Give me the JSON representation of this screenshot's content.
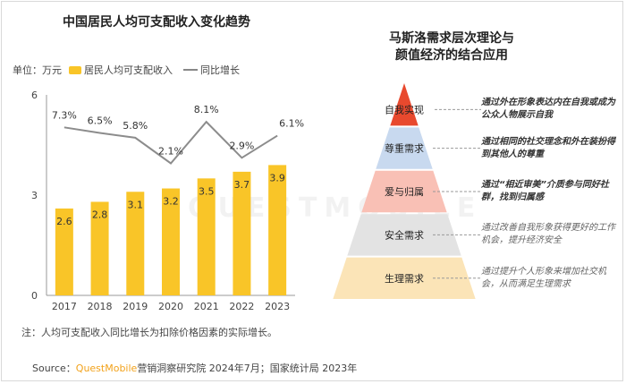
{
  "left_chart": {
    "title": "中国居民人均可支配收入变化趋势",
    "unit_label": "单位：万元",
    "note": "注：人均可支配收入同比增长为扣除价格因素的实际增长。"
  },
  "chart_data": {
    "type": "bar",
    "title": "中国居民人均可支配收入变化趋势",
    "categories": [
      "2017",
      "2018",
      "2019",
      "2020",
      "2021",
      "2022",
      "2023"
    ],
    "series": [
      {
        "name": "居民人均可支配收入",
        "type": "bar",
        "values": [
          2.6,
          2.8,
          3.1,
          3.2,
          3.5,
          3.7,
          3.9
        ],
        "labels": [
          "2.6",
          "2.8",
          "3.1",
          "3.2",
          "3.5",
          "3.7",
          "3.9"
        ],
        "color": "#f9c528"
      },
      {
        "name": "同比增长",
        "type": "line",
        "values": [
          7.3,
          6.5,
          5.8,
          2.1,
          8.1,
          2.9,
          6.1
        ],
        "labels": [
          "7.3%",
          "6.5%",
          "5.8%",
          "2.1%",
          "8.1%",
          "2.9%",
          "6.1%"
        ],
        "color": "#8c8c8c"
      }
    ],
    "yticks": [
      "0",
      "3",
      "6"
    ],
    "ylim": [
      0,
      6
    ],
    "line_ylim": [
      -17,
      12
    ],
    "grid": false,
    "legend_position": "top-left"
  },
  "right_diagram": {
    "title_line1": "马斯洛需求层次理论与",
    "title_line2": "颜值经济的结合应用",
    "levels": [
      {
        "label": "自我实现",
        "desc": "通过外在形象表达内在自我或成为公众人物展示自我",
        "color": "#e8492e"
      },
      {
        "label": "尊重需求",
        "desc": "通过相同的社交理念和外在装扮得到其他人的尊重",
        "color": "#c8d9ef"
      },
      {
        "label": "爱与归属",
        "desc": "通过“相近审美”介质参与同好社群，找到归属感",
        "color": "#f9c0b5"
      },
      {
        "label": "安全需求",
        "desc": "通过改善自我形象获得更好的工作机会，提升经济安全",
        "color": "#e3e3e3"
      },
      {
        "label": "生理需求",
        "desc": "通过提升个人形象来增加社交机会，从而满足生理需求",
        "color": "#fbe4b7"
      }
    ]
  },
  "footer": {
    "source_prefix": "Source：",
    "brand": "QuestMobile",
    "source_text": "营销洞察研究院 2024年7月；国家统计局 2023年"
  },
  "watermark": "QUESTMOBILE"
}
